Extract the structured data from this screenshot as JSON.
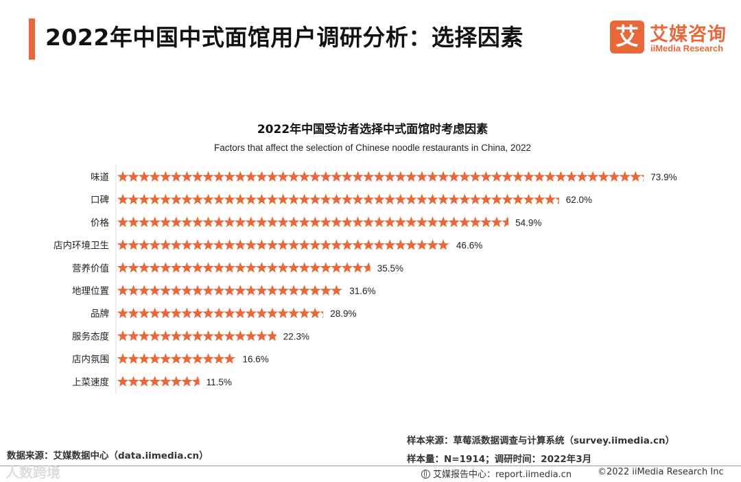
{
  "header": {
    "title": "2022年中国中式面馆用户调研分析：选择因素",
    "logo_mark": "艾",
    "logo_cn": "艾媒咨询",
    "logo_en": "iiMedia Research"
  },
  "colors": {
    "accent": "#e8683a",
    "star": "#e8683a"
  },
  "chart_data": {
    "type": "bar",
    "title": "2022年中国受访者选择中式面馆时考虑因素",
    "subtitle": "Factors that affect the selection of Chinese noodle restaurants in China, 2022",
    "categories": [
      "味道",
      "口碑",
      "价格",
      "店内环境卫生",
      "营养价值",
      "地理位置",
      "品牌",
      "服务态度",
      "店内氛围",
      "上菜速度"
    ],
    "values": [
      73.9,
      62.0,
      54.9,
      46.6,
      35.5,
      31.6,
      28.9,
      22.3,
      16.6,
      11.5
    ],
    "value_labels": [
      "73.9%",
      "62.0%",
      "54.9%",
      "46.6%",
      "35.5%",
      "31.6%",
      "28.9%",
      "22.3%",
      "16.6%",
      "11.5%"
    ],
    "orientation": "horizontal",
    "mark": "star-pictograph",
    "grid": false
  },
  "footer": {
    "data_source": "数据来源：艾媒数据中心（data.iimedia.cn）",
    "sample_source": "样本来源：草莓派数据调查与计算系统（survey.iimedia.cn）",
    "sample_info": "样本量：N=1914；调研时间：2022年3月",
    "report_center": "艾媒报告中心：report.iimedia.cn",
    "copyright": "©2022 iiMedia Research Inc",
    "watermark": "人数跨境"
  }
}
